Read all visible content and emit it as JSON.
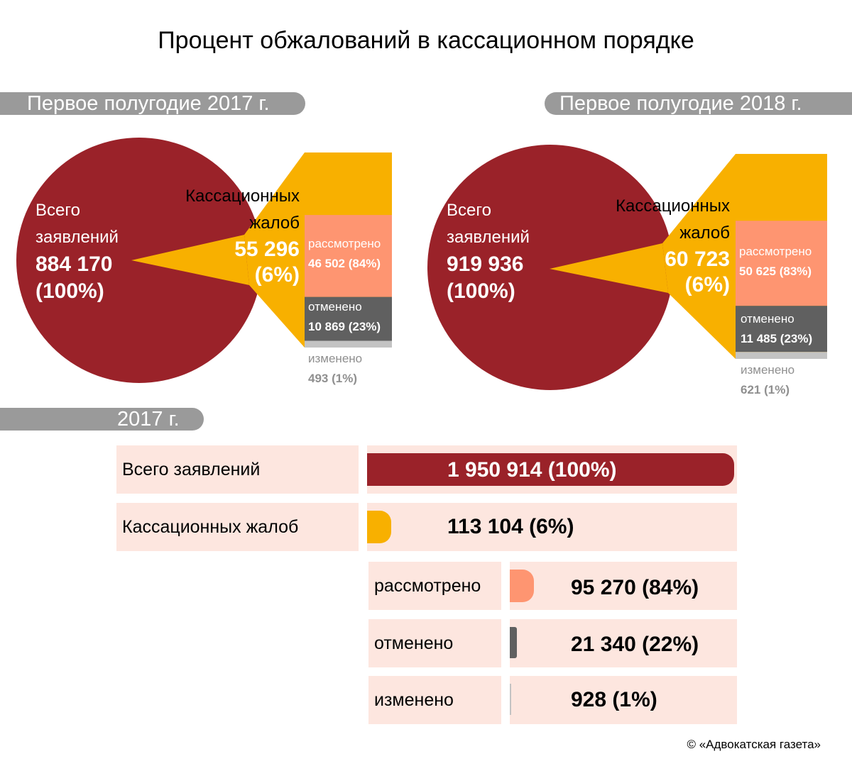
{
  "title": "Процент обжалований в кассационном порядке",
  "colors": {
    "total": "#9a2229",
    "cassation": "#f8b000",
    "reviewed": "#fe9571",
    "cancelled": "#606060",
    "changed": "#c3c3c3",
    "header": "#9a9a9a",
    "row_bg": "#fde6df"
  },
  "period_2017": {
    "header": "Первое полугодие 2017 г.",
    "total_label_line1": "Всего",
    "total_label_line2": "заявлений",
    "total_value": "884 170",
    "total_pct": "(100%)",
    "cass_label_line1": "Кассационных",
    "cass_label_line2": "жалоб",
    "cass_value": "55 296",
    "cass_pct": "(6%)",
    "reviewed_label": "рассмотрено",
    "reviewed_value": "46 502 (84%)",
    "cancelled_label": "отменено",
    "cancelled_value": "10 869 (23%)",
    "changed_label": "изменено",
    "changed_value": "493 (1%)"
  },
  "period_2018": {
    "header": "Первое полугодие 2018 г.",
    "total_label_line1": "Всего",
    "total_label_line2": "заявлений",
    "total_value": "919 936",
    "total_pct": "(100%)",
    "cass_label_line1": "Кассационных",
    "cass_label_line2": "жалоб",
    "cass_value": "60 723",
    "cass_pct": "(6%)",
    "reviewed_label": "рассмотрено",
    "reviewed_value": "50 625 (83%)",
    "cancelled_label": "отменено",
    "cancelled_value": "11 485 (23%)",
    "changed_label": "изменено",
    "changed_value": "621 (1%)"
  },
  "year_2017": {
    "header": "2017 г.",
    "rows": [
      {
        "label": "Всего заявлений",
        "value": "1 950 914 (100%)"
      },
      {
        "label": "Кассационных жалоб",
        "value": "113 104 (6%)"
      },
      {
        "label": "рассмотрено",
        "value": "95 270 (84%)"
      },
      {
        "label": "отменено",
        "value": "21 340 (22%)"
      },
      {
        "label": "изменено",
        "value": "928 (1%)"
      }
    ]
  },
  "chart_data": [
    {
      "type": "pie",
      "title": "Первое полугодие 2017 г.",
      "slices": [
        {
          "label": "Всего заявлений",
          "value": 884170,
          "percent": 100
        },
        {
          "label": "Кассационных жалоб",
          "value": 55296,
          "percent": 6
        }
      ],
      "breakdown": [
        {
          "label": "рассмотрено",
          "value": 46502,
          "percent": 84
        },
        {
          "label": "отменено",
          "value": 10869,
          "percent": 23
        },
        {
          "label": "изменено",
          "value": 493,
          "percent": 1
        }
      ]
    },
    {
      "type": "pie",
      "title": "Первое полугодие 2018 г.",
      "slices": [
        {
          "label": "Всего заявлений",
          "value": 919936,
          "percent": 100
        },
        {
          "label": "Кассационных жалоб",
          "value": 60723,
          "percent": 6
        }
      ],
      "breakdown": [
        {
          "label": "рассмотрено",
          "value": 50625,
          "percent": 83
        },
        {
          "label": "отменено",
          "value": 11485,
          "percent": 23
        },
        {
          "label": "изменено",
          "value": 621,
          "percent": 1
        }
      ]
    },
    {
      "type": "bar",
      "title": "2017 г.",
      "categories": [
        "Всего заявлений",
        "Кассационных жалоб",
        "рассмотрено",
        "отменено",
        "изменено"
      ],
      "values": [
        1950914,
        113104,
        95270,
        21340,
        928
      ],
      "percents": [
        100,
        6,
        84,
        22,
        1
      ]
    }
  ],
  "credit": "© «Адвокатская газета»"
}
